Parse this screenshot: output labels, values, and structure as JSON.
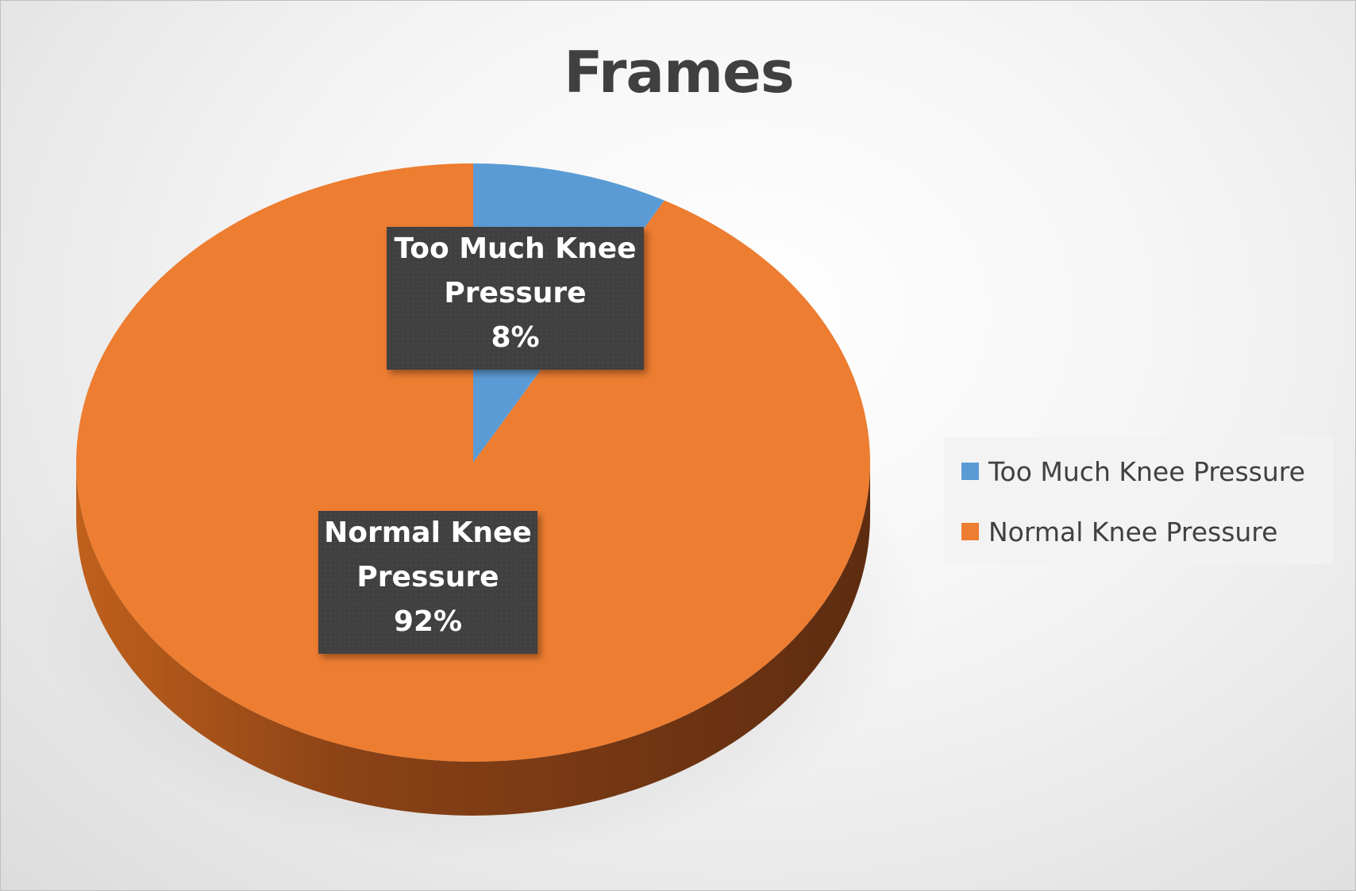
{
  "chart_data": {
    "type": "pie",
    "title": "Frames",
    "categories": [
      "Too Much Knee Pressure",
      "Normal Knee Pressure"
    ],
    "values": [
      8,
      92
    ],
    "value_unit": "%",
    "data_labels": [
      {
        "line1": "Too Much Knee",
        "line2": "Pressure",
        "pct": "8%"
      },
      {
        "line1": "Normal Knee",
        "line2": "Pressure",
        "pct": "92%"
      }
    ],
    "colors": [
      "#5b9bd5",
      "#ed7d31"
    ],
    "legend": {
      "position": "right",
      "items": [
        "Too Much Knee Pressure",
        "Normal Knee Pressure"
      ]
    },
    "style": "3d"
  }
}
